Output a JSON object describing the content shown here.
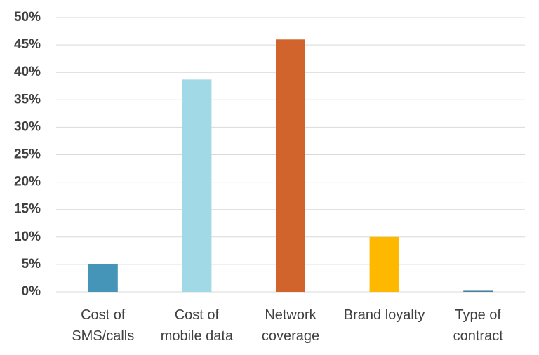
{
  "chart_data": {
    "type": "bar",
    "categories": [
      "Cost of SMS/calls",
      "Cost of mobile data",
      "Network coverage",
      "Brand loyalty",
      "Type of contract"
    ],
    "values": [
      5,
      38.7,
      46,
      10,
      0.2
    ],
    "colors": [
      "#4595b8",
      "#a2d9e6",
      "#d0642c",
      "#ffb800",
      "#4a7fa0"
    ],
    "ylim": [
      0,
      50
    ],
    "yticks": [
      {
        "value": 0,
        "label": "0%"
      },
      {
        "value": 5,
        "label": "5%"
      },
      {
        "value": 10,
        "label": "10%"
      },
      {
        "value": 15,
        "label": "15%"
      },
      {
        "value": 20,
        "label": "20%"
      },
      {
        "value": 25,
        "label": "25%"
      },
      {
        "value": 30,
        "label": "30%"
      },
      {
        "value": 35,
        "label": "35%"
      },
      {
        "value": 40,
        "label": "40%"
      },
      {
        "value": 45,
        "label": "45%"
      },
      {
        "value": 50,
        "label": "50%"
      }
    ],
    "grid": true
  }
}
